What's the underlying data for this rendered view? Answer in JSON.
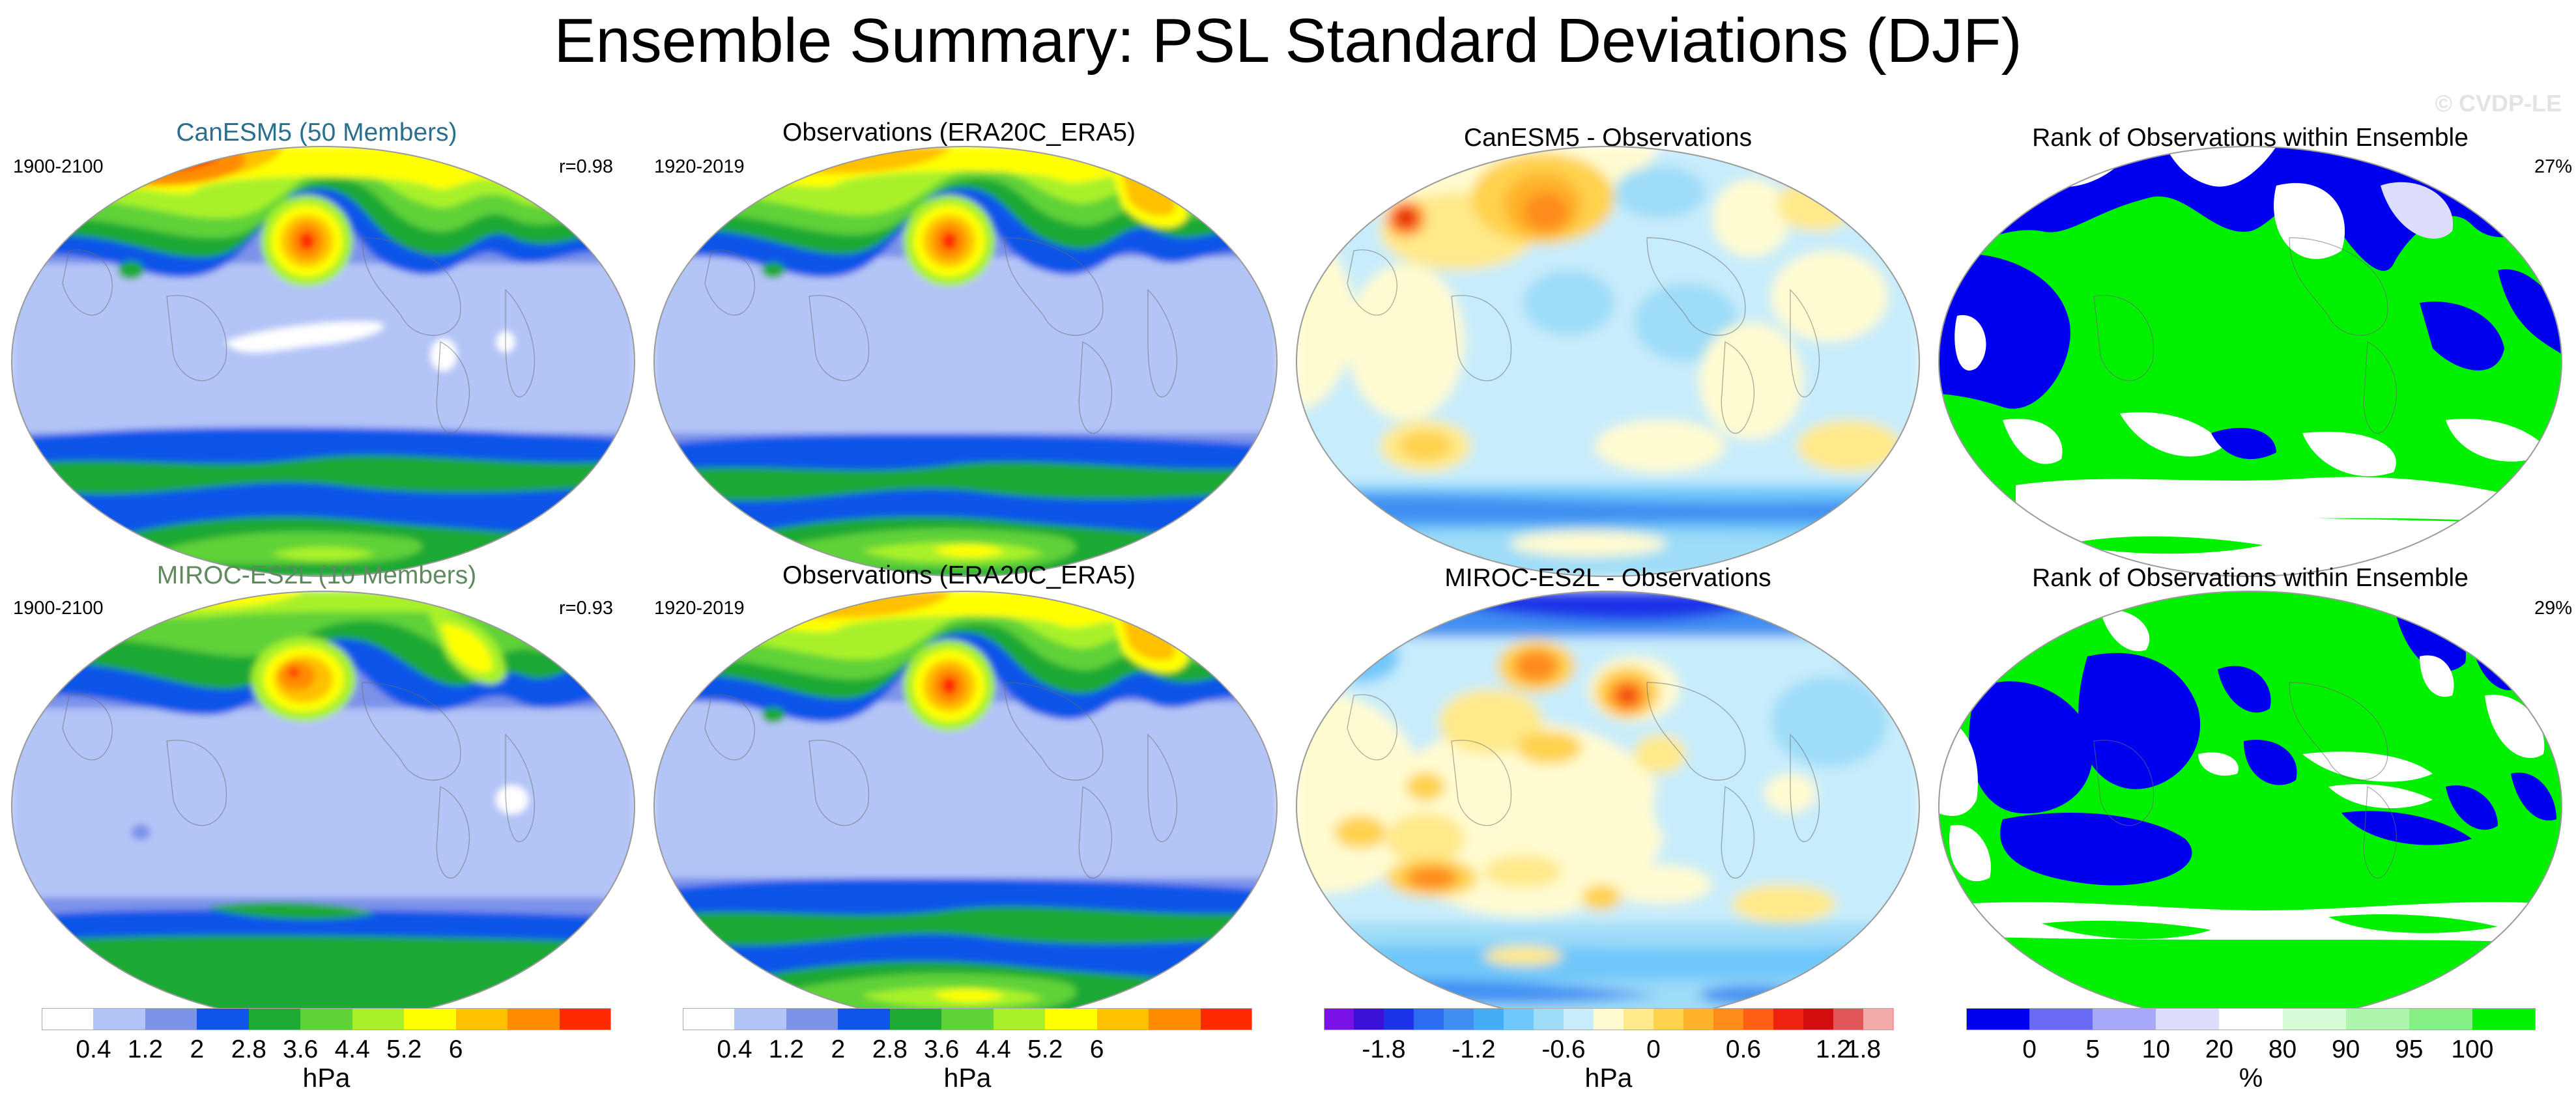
{
  "title": "Ensemble Summary: PSL Standard Deviations (DJF)",
  "watermark": "© CVDP-LE",
  "rows": [
    {
      "model": {
        "title": "CanESM5 (50 Members)",
        "title_color": "#2a6f8f",
        "years": "1900-2100",
        "corr": "r=0.98"
      },
      "obs": {
        "title": "Observations (ERA20C_ERA5)",
        "years": "1920-2019"
      },
      "diff": {
        "title": "CanESM5 - Observations"
      },
      "rank": {
        "title": "Rank of Observations within Ensemble",
        "percent": "27%"
      }
    },
    {
      "model": {
        "title": "MIROC-ES2L (10 Members)",
        "title_color": "#5f8a5f",
        "years": "1900-2100",
        "corr": "r=0.93"
      },
      "obs": {
        "title": "Observations (ERA20C_ERA5)",
        "years": "1920-2019"
      },
      "diff": {
        "title": "MIROC-ES2L - Observations"
      },
      "rank": {
        "title": "Rank of Observations within Ensemble",
        "percent": "29%"
      }
    }
  ],
  "colorbars": {
    "sd": {
      "unit": "hPa",
      "ticks": [
        "0.4",
        "1.2",
        "2",
        "2.8",
        "3.6",
        "4.4",
        "5.2",
        "6"
      ],
      "colors": [
        "#ffffff",
        "#b3c4f7",
        "#7d93ea",
        "#0f55e8",
        "#1fa935",
        "#5fd238",
        "#a8f12a",
        "#ffff00",
        "#ffc000",
        "#ff8c00",
        "#ff2a00"
      ]
    },
    "diff": {
      "unit": "hPa",
      "ticks": [
        "-1.8",
        "-1.2",
        "-0.6",
        "0",
        "0.6",
        "1.2",
        "1.8"
      ],
      "colors": [
        "#7a12e8",
        "#3a0fd8",
        "#1d33e8",
        "#2e6cf0",
        "#3f8ff2",
        "#45adf5",
        "#6fc8fa",
        "#9edcf8",
        "#c7ecfb",
        "#fffbd0",
        "#ffe98a",
        "#ffd24d",
        "#ffb22a",
        "#ff8c1a",
        "#ff5f12",
        "#ee2210",
        "#d10d0d",
        "#e05555",
        "#f5aaaa"
      ]
    },
    "rank": {
      "unit": "%",
      "ticks": [
        "0",
        "5",
        "10",
        "20",
        "80",
        "90",
        "95",
        "100"
      ],
      "colors": [
        "#0000f0",
        "#6a6af5",
        "#a8a8f8",
        "#dcdcfb",
        "#ffffff",
        "#d8fcd8",
        "#aef5ae",
        "#86f086",
        "#00f000"
      ]
    }
  }
}
